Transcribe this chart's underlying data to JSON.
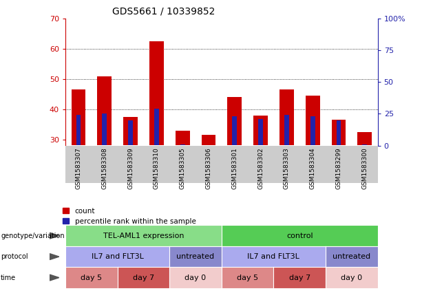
{
  "title": "GDS5661 / 10339852",
  "samples": [
    "GSM1583307",
    "GSM1583308",
    "GSM1583309",
    "GSM1583310",
    "GSM1583305",
    "GSM1583306",
    "GSM1583301",
    "GSM1583302",
    "GSM1583303",
    "GSM1583304",
    "GSM1583299",
    "GSM1583300"
  ],
  "red_values": [
    46.5,
    51.0,
    37.5,
    62.5,
    33.0,
    31.5,
    44.0,
    38.0,
    46.5,
    44.5,
    36.5,
    32.5
  ],
  "blue_values_pct": [
    24,
    25,
    20,
    29,
    1,
    0,
    23,
    21,
    24,
    23,
    20,
    1
  ],
  "ymin": 28,
  "ymax": 70,
  "yticks": [
    30,
    40,
    50,
    60,
    70
  ],
  "y2ticks": [
    0,
    25,
    50,
    75,
    100
  ],
  "y2labels": [
    "0",
    "25",
    "50",
    "75",
    "100%"
  ],
  "red_color": "#cc0000",
  "blue_color": "#2222aa",
  "chart_bg": "#ffffff",
  "genotype_labels": [
    {
      "text": "TEL-AML1 expression",
      "start": 0,
      "end": 5,
      "color": "#88dd88"
    },
    {
      "text": "control",
      "start": 6,
      "end": 11,
      "color": "#55cc55"
    }
  ],
  "protocol_labels": [
    {
      "text": "IL7 and FLT3L",
      "start": 0,
      "end": 3,
      "color": "#aaaaee"
    },
    {
      "text": "untreated",
      "start": 4,
      "end": 5,
      "color": "#8888cc"
    },
    {
      "text": "IL7 and FLT3L",
      "start": 6,
      "end": 9,
      "color": "#aaaaee"
    },
    {
      "text": "untreated",
      "start": 10,
      "end": 11,
      "color": "#8888cc"
    }
  ],
  "time_labels": [
    {
      "text": "day 5",
      "start": 0,
      "end": 1,
      "color": "#dd8888"
    },
    {
      "text": "day 7",
      "start": 2,
      "end": 3,
      "color": "#cc5555"
    },
    {
      "text": "day 0",
      "start": 4,
      "end": 5,
      "color": "#f2cccc"
    },
    {
      "text": "day 5",
      "start": 6,
      "end": 7,
      "color": "#dd8888"
    },
    {
      "text": "day 7",
      "start": 8,
      "end": 9,
      "color": "#cc5555"
    },
    {
      "text": "day 0",
      "start": 10,
      "end": 11,
      "color": "#f2cccc"
    }
  ],
  "row_labels": [
    "genotype/variation",
    "protocol",
    "time"
  ],
  "legend_count": "count",
  "legend_pct": "percentile rank within the sample"
}
